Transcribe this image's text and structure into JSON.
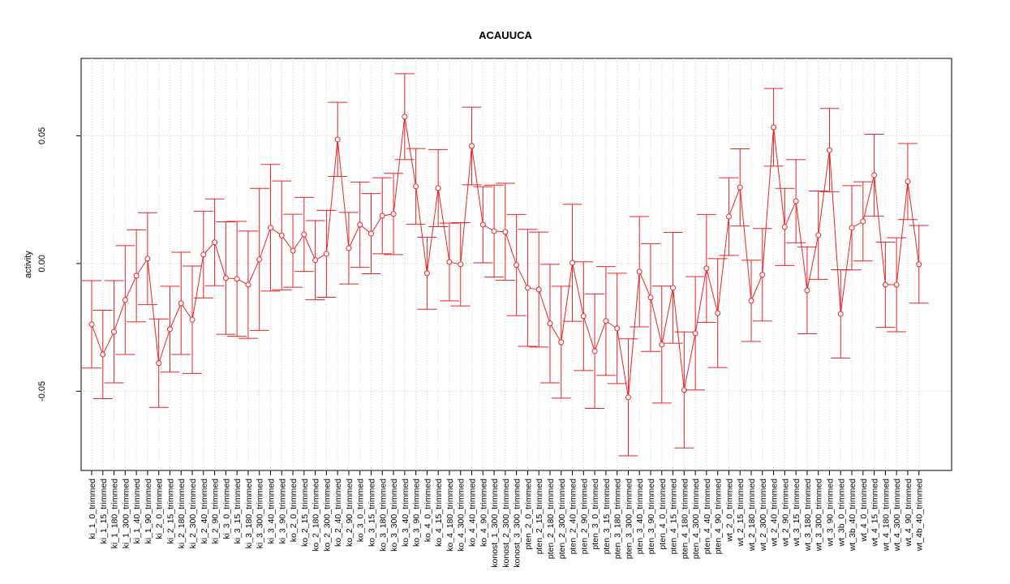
{
  "chart_data": {
    "type": "errorbar",
    "title": "ACAUUCA",
    "y_label": "activity",
    "categories": [
      "ki_1_0_trimmed",
      "ki_1_15_trimmed",
      "ki_1_180_trimmed",
      "ki_1_300_trimmed",
      "ki_1_40_trimmed",
      "ki_1_90_trimmed",
      "ki_2_0_trimmed",
      "ki_2_15_trimmed",
      "ki_2_180_trimmed",
      "ki_2_300_trimmed",
      "ki_2_40_trimmed",
      "ki_2_90_trimmed",
      "ki_3_0_trimmed",
      "ki_3_15_trimmed",
      "ki_3_180_trimmed",
      "ki_3_300_trimmed",
      "ki_3_40_trimmed",
      "ki_3_90_trimmed",
      "ko_2_0_trimmed",
      "ko_2_15_trimmed",
      "ko_2_180_trimmed",
      "ko_2_300_trimmed",
      "ko_2_40_trimmed",
      "ko_2_90_trimmed",
      "ko_3_0_trimmed",
      "ko_3_15_trimmed",
      "ko_3_180_trimmed",
      "ko_3_300_trimmed",
      "ko_3_40_trimmed",
      "ko_3_90_trimmed",
      "ko_4_0_trimmed",
      "ko_4_15_trimmed",
      "ko_4_180_trimmed",
      "ko_4_300_trimmed",
      "ko_4_40_trimmed",
      "ko_4_90_trimmed",
      "konost_1_300_trimmed",
      "konost_2_300_trimmed",
      "konost_3_300_trimmed",
      "pten_2_0_trimmed",
      "pten_2_15_trimmed",
      "pten_2_180_trimmed",
      "pten_2_300_trimmed",
      "pten_2_40_trimmed",
      "pten_2_90_trimmed",
      "pten_3_0_trimmed",
      "pten_3_15_trimmed",
      "pten_3_180_trimmed",
      "pten_3_300_trimmed",
      "pten_3_40_trimmed",
      "pten_3_90_trimmed",
      "pten_4_0_trimmed",
      "pten_4_15_trimmed",
      "pten_4_180_trimmed",
      "pten_4_300_trimmed",
      "pten_4_40_trimmed",
      "pten_4_90_trimmed",
      "wt_2_0_trimmed",
      "wt_2_15_trimmed",
      "wt_2_180_trimmed",
      "wt_2_300_trimmed",
      "wt_2_40_trimmed",
      "wt_2_90_trimmed",
      "wt_3_15_trimmed",
      "wt_3_180_trimmed",
      "wt_3_300_trimmed",
      "wt_3_90_trimmed",
      "wt_3b_0_trimmed",
      "wt_3b_40_trimmed",
      "wt_4_0_trimmed",
      "wt_4_15_trimmed",
      "wt_4_180_trimmed",
      "wt_4_300_trimmed",
      "wt_4_90_trimmed",
      "wt_4b_40_trimmed"
    ],
    "values": [
      -0.0238,
      -0.0356,
      -0.0267,
      -0.0143,
      -0.0048,
      0.0019,
      -0.039,
      -0.0257,
      -0.0156,
      -0.022,
      0.0035,
      0.0083,
      -0.0057,
      -0.006,
      -0.0083,
      0.0016,
      0.014,
      0.011,
      0.005,
      0.0114,
      0.0013,
      0.0038,
      0.0486,
      0.006,
      0.0152,
      0.0117,
      0.0187,
      0.0194,
      0.0575,
      0.0302,
      -0.0038,
      0.0295,
      0.0006,
      -0.0003,
      0.046,
      0.0152,
      0.0127,
      0.0124,
      -0.0006,
      -0.0095,
      -0.0102,
      -0.0235,
      -0.0308,
      0.0003,
      -0.0206,
      -0.0343,
      -0.0225,
      -0.0254,
      -0.0524,
      -0.0032,
      -0.0133,
      -0.0317,
      -0.0095,
      -0.0495,
      -0.0273,
      -0.0019,
      -0.0194,
      0.0184,
      0.0298,
      -0.0146,
      -0.0044,
      0.0533,
      0.0143,
      0.0244,
      -0.0105,
      0.0111,
      0.0444,
      -0.0197,
      0.014,
      0.0165,
      0.0346,
      -0.0083,
      -0.0083,
      0.0321,
      -0.0003
    ],
    "errors": [
      0.0171,
      0.0173,
      0.02,
      0.0213,
      0.018,
      0.018,
      0.0173,
      0.0168,
      0.02,
      0.021,
      0.017,
      0.017,
      0.022,
      0.0225,
      0.021,
      0.0278,
      0.0248,
      0.0213,
      0.0143,
      0.0145,
      0.0155,
      0.017,
      0.0145,
      0.014,
      0.0167,
      0.0157,
      0.0149,
      0.0159,
      0.0168,
      0.0148,
      0.0141,
      0.0151,
      0.0152,
      0.0163,
      0.0152,
      0.0149,
      0.018,
      0.019,
      0.0198,
      0.0229,
      0.0225,
      0.0232,
      0.0219,
      0.0229,
      0.0213,
      0.0224,
      0.0213,
      0.0216,
      0.0229,
      0.0216,
      0.0211,
      0.0229,
      0.0217,
      0.0227,
      0.0222,
      0.0211,
      0.0213,
      0.0152,
      0.0151,
      0.0159,
      0.0181,
      0.0152,
      0.0151,
      0.0163,
      0.017,
      0.0173,
      0.0163,
      0.0173,
      0.0165,
      0.0155,
      0.016,
      0.0167,
      0.0184,
      0.0149,
      0.0152
    ],
    "color": "#ee2222",
    "ylim": [
      -0.081,
      0.0803
    ],
    "yticks": [
      -0.05,
      {
        "value": 0,
        "label": "0.00"
      },
      0.05
    ],
    "grid": true
  }
}
